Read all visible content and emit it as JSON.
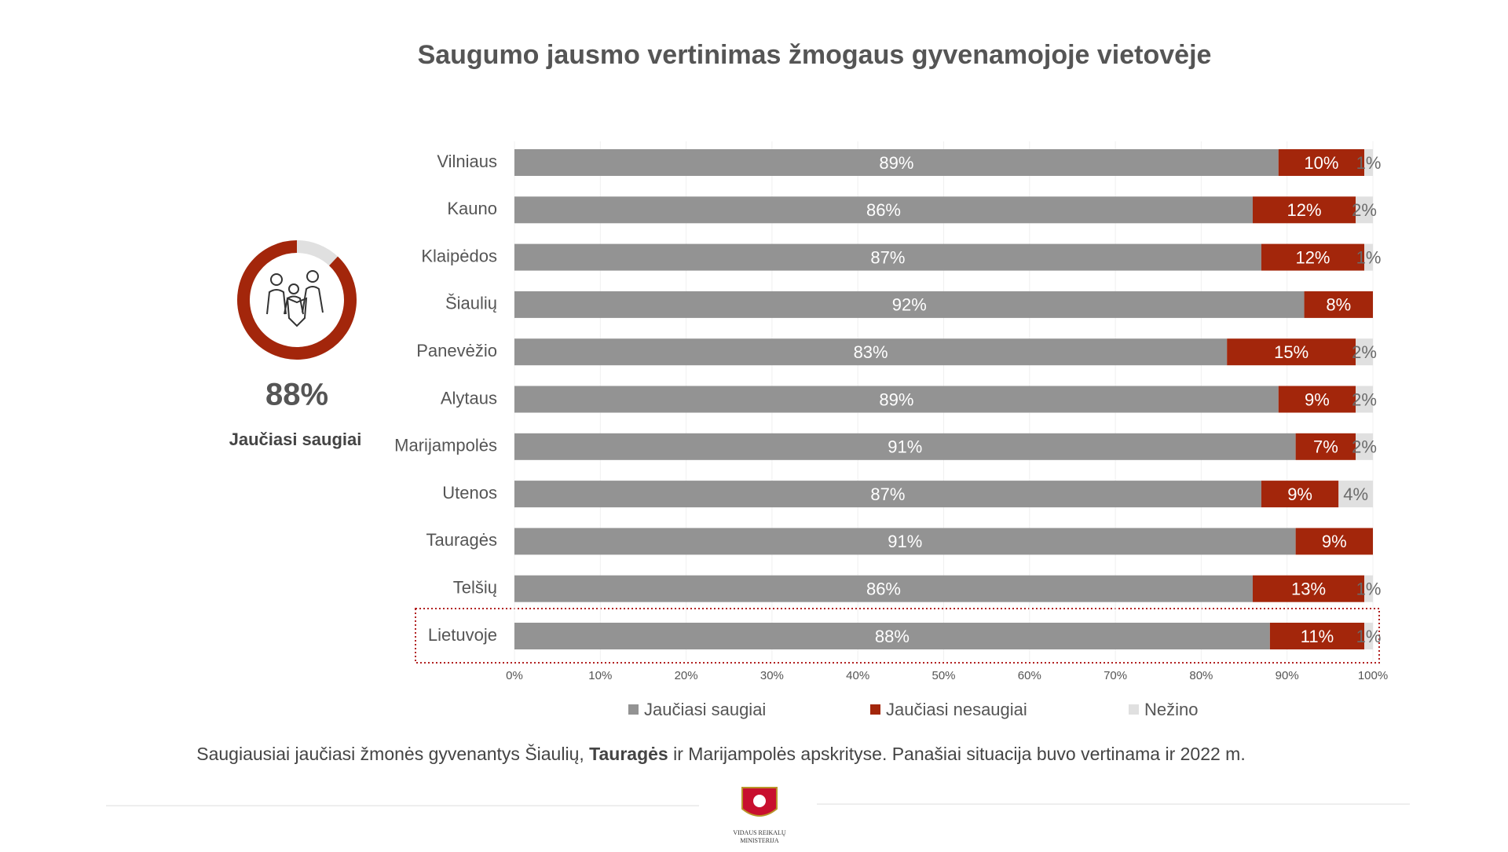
{
  "chart_data": [
    {
      "type": "stacked-bar-horizontal",
      "title": "Saugumo jausmo vertinimas žmogaus gyvenamojoje vietovėje",
      "categories": [
        "Vilniaus",
        "Kauno",
        "Klaipėdos",
        "Šiaulių",
        "Panevėžio",
        "Alytaus",
        "Marijampolės",
        "Utenos",
        "Tauragės",
        "Telšių",
        "Lietuvoje"
      ],
      "series": [
        {
          "name": "Jaučiasi saugiai",
          "color": "#939393",
          "label_color": "#ffffff",
          "values": [
            89,
            86,
            87,
            92,
            83,
            89,
            91,
            87,
            91,
            86,
            88
          ],
          "value_labels": [
            "89%",
            "86%",
            "87%",
            "92%",
            "83%",
            "89%",
            "91%",
            "87%",
            "91%",
            "86%",
            "88%"
          ]
        },
        {
          "name": "Jaučiasi nesaugiai",
          "color": "#a3260b",
          "label_color": "#ffffff",
          "values": [
            10,
            12,
            12,
            8,
            15,
            9,
            7,
            9,
            9,
            13,
            11
          ],
          "value_labels": [
            "10%",
            "12%",
            "12%",
            "8%",
            "15%",
            "9%",
            "7%",
            "9%",
            "9%",
            "13%",
            "11%"
          ]
        },
        {
          "name": "Nežino",
          "color": "#e0e0e0",
          "label_color": "#6b6b6b",
          "values": [
            1,
            2,
            1,
            0,
            2,
            2,
            2,
            4,
            0,
            1,
            1
          ],
          "value_labels": [
            "1%",
            "2%",
            "1%",
            null,
            "2%",
            "2%",
            "2%",
            "4%",
            null,
            "1%",
            "1%"
          ]
        }
      ],
      "xlim": [
        0,
        100
      ],
      "xticks": [
        {
          "value": 0,
          "label": "0%"
        },
        {
          "value": 10,
          "label": "10%"
        },
        {
          "value": 20,
          "label": "20%"
        },
        {
          "value": 30,
          "label": "30%"
        },
        {
          "value": 40,
          "label": "40%"
        },
        {
          "value": 50,
          "label": "50%"
        },
        {
          "value": 60,
          "label": "60%"
        },
        {
          "value": 70,
          "label": "70%"
        },
        {
          "value": 80,
          "label": "80%"
        },
        {
          "value": 90,
          "label": "90%"
        },
        {
          "value": 100,
          "label": "100%"
        }
      ],
      "grid": true,
      "legend": "bottom"
    },
    {
      "type": "donut",
      "values": [
        88
      ],
      "value_labels": [
        "88%"
      ],
      "color": "#a3260b",
      "caption": "Jaučiasi saugiai"
    }
  ],
  "note": {
    "parts": [
      "Saugiausiai jaučiasi žmonės gyvenantys Šiaulių, ",
      "Tauragės",
      " ir Marijampolės apskrityse. Panašiai situacija buvo vertinama ir 2022 m."
    ]
  },
  "logo": {
    "lines": [
      "VIDAUS REIKALŲ",
      "MINISTERIJA"
    ]
  }
}
